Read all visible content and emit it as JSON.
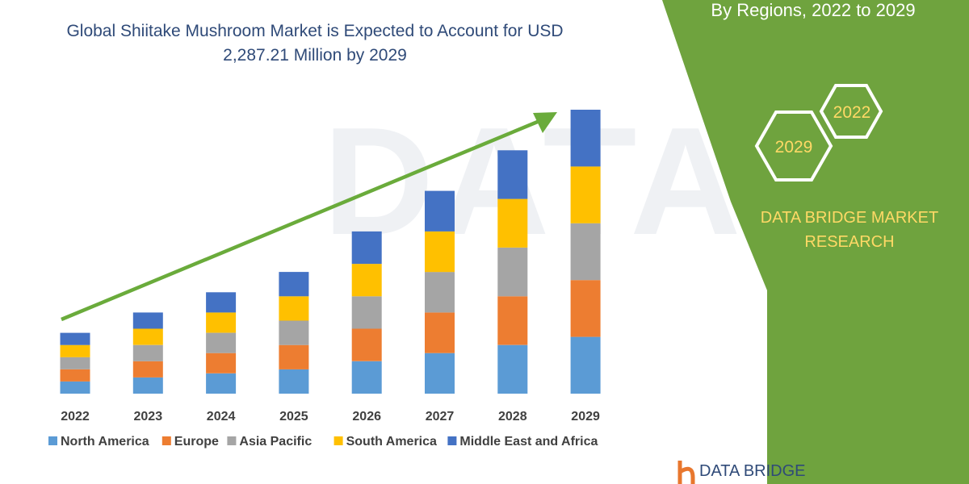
{
  "chart_data": {
    "type": "bar",
    "stacked": true,
    "title": "Global Shiitake Mushroom Market is Expected to Account for USD 2,287.21 Million by 2029",
    "xlabel": "",
    "ylabel": "",
    "categories": [
      "2022",
      "2023",
      "2024",
      "2025",
      "2026",
      "2027",
      "2028",
      "2029"
    ],
    "series": [
      {
        "name": "North America",
        "color": "#5b9bd5",
        "values": [
          15,
          20,
          25,
          30,
          40,
          50,
          60,
          70
        ]
      },
      {
        "name": "Europe",
        "color": "#ed7d31",
        "values": [
          15,
          20,
          25,
          30,
          40,
          50,
          60,
          70
        ]
      },
      {
        "name": "Asia Pacific",
        "color": "#a5a5a5",
        "values": [
          15,
          20,
          25,
          30,
          40,
          50,
          60,
          70
        ]
      },
      {
        "name": "South America",
        "color": "#ffc000",
        "values": [
          15,
          20,
          25,
          30,
          40,
          50,
          60,
          70
        ]
      },
      {
        "name": "Middle East and Africa",
        "color": "#4472c4",
        "values": [
          15,
          20,
          25,
          30,
          40,
          50,
          60,
          70
        ]
      }
    ],
    "ylim": [
      0,
      350
    ],
    "grid": false,
    "legend_position": "bottom",
    "trend_arrow_color": "#6aab3b"
  },
  "panel": {
    "heading": "By Regions, 2022 to 2029",
    "hex_labels": [
      "2022",
      "2029"
    ],
    "brand_lines": [
      "DATA BRIDGE MARKET",
      "RESEARCH"
    ],
    "background_color": "#6fa33e",
    "accent_color": "#ffd966"
  },
  "footer_logo": {
    "text": "DATA BRIDGE",
    "color": "#2f4a78"
  }
}
